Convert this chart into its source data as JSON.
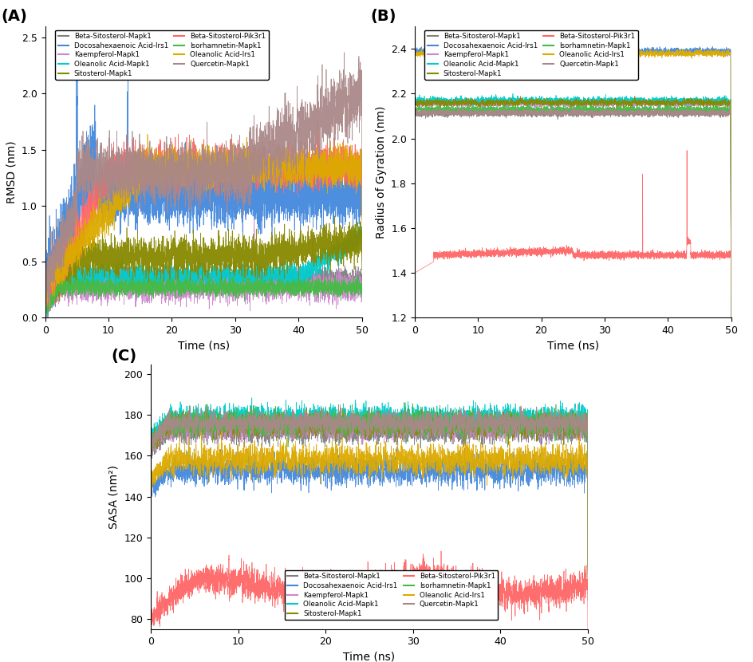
{
  "labels": [
    "Beta-Sitosterol-Mapk1",
    "Docosahexaenoic Acid-Irs1",
    "Kaempferol-Mapk1",
    "Oleanolic Acid-Mapk1",
    "Sitosterol-Mapk1",
    "Beta-Sitosterol-Pik3r1",
    "Isorhamnetin-Mapk1",
    "Oleanolic Acid-Irs1",
    "Quercetin-Mapk1"
  ],
  "colors": {
    "Beta-Sitosterol-Mapk1": "#808080",
    "Docosahexaenoic Acid-Irs1": "#4488DD",
    "Kaempferol-Mapk1": "#CC88CC",
    "Oleanolic Acid-Mapk1": "#00CCCC",
    "Sitosterol-Mapk1": "#888800",
    "Beta-Sitosterol-Pik3r1": "#FF6666",
    "Isorhamnetin-Mapk1": "#44BB44",
    "Oleanolic Acid-Irs1": "#DDAA00",
    "Quercetin-Mapk1": "#AA8888"
  },
  "legend_order_col1": [
    "Beta-Sitosterol-Mapk1",
    "Docosahexaenoic Acid-Irs1",
    "Kaempferol-Mapk1",
    "Oleanolic Acid-Mapk1",
    "Sitosterol-Mapk1"
  ],
  "legend_order_col2": [
    "Beta-Sitosterol-Pik3r1",
    "Isorhamnetin-Mapk1",
    "Oleanolic Acid-Irs1",
    "Quercetin-Mapk1"
  ],
  "time_points": 5000,
  "time_max": 50,
  "panel_labels": [
    "(A)",
    "(B)",
    "(C)"
  ],
  "rmsd": {
    "ylabel": "RMSD (nm)",
    "xlabel": "Time (ns)",
    "ylim": [
      0.0,
      2.6
    ],
    "yticks": [
      0.0,
      0.5,
      1.0,
      1.5,
      2.0,
      2.5
    ]
  },
  "rg": {
    "ylabel": "Radius of Gyration (nm)",
    "xlabel": "Time (ns)",
    "ylim": [
      1.2,
      2.5
    ],
    "yticks": [
      1.2,
      1.4,
      1.6,
      1.8,
      2.0,
      2.2,
      2.4
    ]
  },
  "sasa": {
    "ylabel": "SASA (nm²)",
    "xlabel": "Time (ns)",
    "ylim": [
      75,
      205
    ],
    "yticks": [
      80,
      100,
      120,
      140,
      160,
      180,
      200
    ]
  }
}
